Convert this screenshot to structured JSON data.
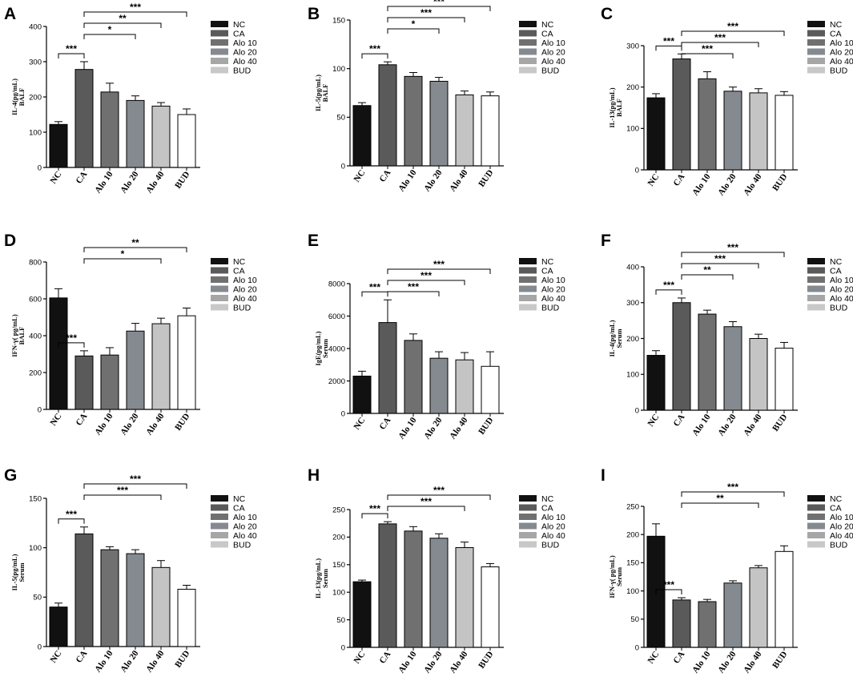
{
  "colors": {
    "NC": "#111111",
    "CA": "#5a5a5a",
    "Alo 10": "#707070",
    "Alo 20": "#858a90",
    "Alo 40": "#c4c4c4",
    "BUD": "#ffffff",
    "legend": [
      "#111111",
      "#5a5a5a",
      "#707070",
      "#858a90",
      "#a6a6a6",
      "#c8c8c8"
    ]
  },
  "chart_data": [
    {
      "panel": "A",
      "type": "bar",
      "categories": [
        "NC",
        "CA",
        "Alo 10",
        "Alo 20",
        "Alo 40",
        "BUD"
      ],
      "values": [
        122,
        278,
        214,
        190,
        174,
        150
      ],
      "errors": [
        8,
        22,
        25,
        13,
        10,
        16
      ],
      "ylabel_top": "IL-4(pg/mL)",
      "ylabel_bottom": "BALF",
      "ylim": [
        0,
        400
      ],
      "yticks": [
        "0",
        "100",
        "200",
        "300",
        "400"
      ],
      "significance": [
        {
          "from": 1,
          "to": 5,
          "label": "***"
        },
        {
          "from": 1,
          "to": 4,
          "label": "**"
        },
        {
          "from": 0,
          "to": 1,
          "label": "***"
        },
        {
          "from": 1,
          "to": 3,
          "label": "*"
        }
      ],
      "legend": [
        "NC",
        "CA",
        "Alo 10",
        "Alo 20",
        "Alo 40",
        "BUD"
      ]
    },
    {
      "panel": "B",
      "type": "bar",
      "categories": [
        "NC",
        "CA",
        "Alo 10",
        "Alo 20",
        "Alo 40",
        "BUD"
      ],
      "values": [
        62,
        104,
        92,
        87,
        73,
        72
      ],
      "errors": [
        3,
        3,
        4,
        4,
        4,
        4
      ],
      "ylabel_top": "IL-5(pg/mL)",
      "ylabel_bottom": "BALF",
      "ylim": [
        0,
        150
      ],
      "yticks": [
        "0",
        "50",
        "100",
        "150"
      ],
      "significance": [
        {
          "from": 1,
          "to": 5,
          "label": "***"
        },
        {
          "from": 1,
          "to": 4,
          "label": "***"
        },
        {
          "from": 0,
          "to": 1,
          "label": "***"
        },
        {
          "from": 1,
          "to": 3,
          "label": "*"
        }
      ],
      "legend": [
        "NC",
        "CA",
        "Alo 10",
        "Alo 20",
        "Alo 40",
        "BUD"
      ]
    },
    {
      "panel": "C",
      "type": "bar",
      "categories": [
        "NC",
        "CA",
        "Alo 10",
        "Alo 20",
        "Alo 40",
        "BUD"
      ],
      "values": [
        174,
        268,
        220,
        190,
        186,
        180
      ],
      "errors": [
        10,
        12,
        17,
        10,
        10,
        9
      ],
      "ylabel_top": "IL-13(pg/mL)",
      "ylabel_bottom": "BALF",
      "ylim": [
        0,
        300
      ],
      "yticks": [
        "0",
        "100",
        "200",
        "300"
      ],
      "significance": [
        {
          "from": 1,
          "to": 5,
          "label": "***"
        },
        {
          "from": 1,
          "to": 4,
          "label": "***"
        },
        {
          "from": 0,
          "to": 1,
          "label": "***"
        },
        {
          "from": 1,
          "to": 3,
          "label": "***"
        }
      ],
      "legend": [
        "NC",
        "CA",
        "Alo 10",
        "Alo 20",
        "Alo 40",
        "BUD"
      ]
    },
    {
      "panel": "D",
      "type": "bar",
      "categories": [
        "NC",
        "CA",
        "Alo 10",
        "Alo 20",
        "Alo 40",
        "BUD"
      ],
      "values": [
        605,
        290,
        295,
        425,
        465,
        508
      ],
      "errors": [
        50,
        28,
        40,
        42,
        30,
        42
      ],
      "ylabel_top": "IFN-γ( pg/mL)",
      "ylabel_bottom": "BALF",
      "ylim": [
        0,
        800
      ],
      "yticks": [
        "0",
        "200",
        "400",
        "600",
        "800"
      ],
      "significance": [
        {
          "from": 1,
          "to": 5,
          "label": "**"
        },
        {
          "from": 0,
          "to": 1,
          "label": "***"
        },
        {
          "from": 1,
          "to": 4,
          "label": "*"
        }
      ],
      "legend": [
        "NC",
        "CA",
        "Alo 10",
        "Alo 20",
        "Alo 40",
        "BUD"
      ]
    },
    {
      "panel": "E",
      "type": "bar",
      "categories": [
        "NC",
        "CA",
        "Alo 10",
        "Alo 20",
        "Alo 40",
        "BUD"
      ],
      "values": [
        2300,
        5600,
        4500,
        3400,
        3300,
        2900
      ],
      "errors": [
        300,
        1400,
        400,
        400,
        450,
        900
      ],
      "ylabel_top": "IgE(pg/mL)",
      "ylabel_bottom": "Serum",
      "ylim": [
        0,
        8000
      ],
      "yticks": [
        "0",
        "2000",
        "4000",
        "6000",
        "8000"
      ],
      "significance": [
        {
          "from": 1,
          "to": 5,
          "label": "***"
        },
        {
          "from": 1,
          "to": 4,
          "label": "***"
        },
        {
          "from": 0,
          "to": 1,
          "label": "***"
        },
        {
          "from": 1,
          "to": 3,
          "label": "***"
        }
      ],
      "legend": [
        "NC",
        "CA",
        "Alo 10",
        "Alo 20",
        "Alo 40",
        "BUD"
      ]
    },
    {
      "panel": "F",
      "type": "bar",
      "categories": [
        "NC",
        "CA",
        "Alo 10",
        "Alo 20",
        "Alo 40",
        "BUD"
      ],
      "values": [
        153,
        300,
        268,
        233,
        200,
        173
      ],
      "errors": [
        13,
        13,
        11,
        14,
        12,
        16
      ],
      "ylabel_top": "IL-4(pg/mL)",
      "ylabel_bottom": "Serum",
      "ylim": [
        0,
        400
      ],
      "yticks": [
        "0",
        "100",
        "200",
        "300",
        "400"
      ],
      "significance": [
        {
          "from": 1,
          "to": 5,
          "label": "***"
        },
        {
          "from": 1,
          "to": 4,
          "label": "***"
        },
        {
          "from": 0,
          "to": 1,
          "label": "***"
        },
        {
          "from": 1,
          "to": 3,
          "label": "**"
        }
      ],
      "legend": [
        "NC",
        "CA",
        "Alo 10",
        "Alo 20",
        "Alo 40",
        "BUD"
      ]
    },
    {
      "panel": "G",
      "type": "bar",
      "categories": [
        "NC",
        "CA",
        "Alo 10",
        "Alo 20",
        "Alo 40",
        "BUD"
      ],
      "values": [
        40,
        114,
        98,
        94,
        80,
        58
      ],
      "errors": [
        4,
        7,
        3,
        4,
        7,
        4
      ],
      "ylabel_top": "IL-5(pg/mL)",
      "ylabel_bottom": "Serum",
      "ylim": [
        0,
        150
      ],
      "yticks": [
        "0",
        "50",
        "100",
        "150"
      ],
      "significance": [
        {
          "from": 1,
          "to": 5,
          "label": "***"
        },
        {
          "from": 0,
          "to": 1,
          "label": "***"
        },
        {
          "from": 1,
          "to": 4,
          "label": "***"
        }
      ],
      "legend": [
        "NC",
        "CA",
        "Alo 10",
        "Alo 20",
        "Alo 40",
        "BUD"
      ]
    },
    {
      "panel": "H",
      "type": "bar",
      "categories": [
        "NC",
        "CA",
        "Alo 10",
        "Alo 20",
        "Alo 40",
        "BUD"
      ],
      "values": [
        119,
        224,
        211,
        198,
        181,
        146
      ],
      "errors": [
        3,
        4,
        8,
        8,
        10,
        6
      ],
      "ylabel_top": "IL-13(pg/mL)",
      "ylabel_bottom": "Serum",
      "ylim": [
        0,
        250
      ],
      "yticks": [
        "0",
        "50",
        "100",
        "150",
        "200",
        "250"
      ],
      "significance": [
        {
          "from": 1,
          "to": 5,
          "label": "***"
        },
        {
          "from": 0,
          "to": 1,
          "label": "***"
        },
        {
          "from": 1,
          "to": 4,
          "label": "***"
        }
      ],
      "legend": [
        "NC",
        "CA",
        "Alo 10",
        "Alo 20",
        "Alo 40",
        "BUD"
      ]
    },
    {
      "panel": "I",
      "type": "bar",
      "categories": [
        "NC",
        "CA",
        "Alo 10",
        "Alo 20",
        "Alo 40",
        "BUD"
      ],
      "values": [
        197,
        84,
        81,
        114,
        141,
        170
      ],
      "errors": [
        22,
        4,
        4,
        4,
        4,
        10
      ],
      "ylabel_top": "IFN-γ( pg/mL)",
      "ylabel_bottom": "Serum",
      "ylim": [
        0,
        250
      ],
      "yticks": [
        "0",
        "50",
        "100",
        "150",
        "200",
        "250"
      ],
      "significance": [
        {
          "from": 1,
          "to": 5,
          "label": "***"
        },
        {
          "from": 0,
          "to": 1,
          "label": "***"
        },
        {
          "from": 1,
          "to": 4,
          "label": "**"
        }
      ],
      "legend": [
        "NC",
        "CA",
        "Alo 10",
        "Alo 20",
        "Alo 40",
        "BUD"
      ]
    }
  ]
}
